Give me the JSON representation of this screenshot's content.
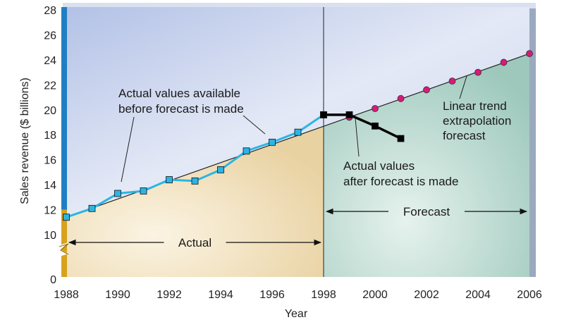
{
  "chart_data": {
    "type": "line",
    "title": "",
    "xlabel": "Year",
    "ylabel": "Sales revenue ($ billions)",
    "x_ticks": [
      1988,
      1990,
      1992,
      1994,
      1996,
      1998,
      2000,
      2002,
      2004,
      2006
    ],
    "y_ticks": [
      0,
      10,
      12,
      14,
      16,
      18,
      20,
      22,
      24,
      26,
      28
    ],
    "xlim": [
      1988,
      2006
    ],
    "ylim": [
      0,
      28
    ],
    "y_axis_break": true,
    "series": [
      {
        "role": "actual-before",
        "marker": "square",
        "color": "#2bb5e4",
        "x": [
          1988,
          1989,
          1990,
          1991,
          1992,
          1993,
          1994,
          1995,
          1996,
          1997,
          1998
        ],
        "y": [
          11.4,
          12.1,
          13.3,
          13.5,
          14.4,
          14.3,
          15.2,
          16.7,
          17.4,
          18.2,
          19.6
        ]
      },
      {
        "role": "actual-after",
        "marker": "square",
        "color": "#000000",
        "x": [
          1998,
          1999,
          2000,
          2001
        ],
        "y": [
          19.6,
          19.6,
          18.7,
          17.7
        ]
      },
      {
        "role": "linear-trend",
        "marker": "circle",
        "color": "#d8197a",
        "x": [
          1988,
          1999,
          2000,
          2001,
          2002,
          2003,
          2004,
          2005,
          2006
        ],
        "y": [
          11.4,
          19.4,
          20.1,
          20.9,
          21.6,
          22.3,
          23.0,
          23.8,
          24.5
        ]
      }
    ],
    "trend_line": {
      "x": [
        1988,
        2006
      ],
      "y": [
        11.4,
        24.5
      ]
    },
    "forecast_start": 1998,
    "regions": [
      {
        "label": "Actual",
        "x_from": 1988,
        "x_to": 1998
      },
      {
        "label": "Forecast",
        "x_from": 1998,
        "x_to": 2006
      }
    ],
    "annotations": [
      {
        "lines": [
          "Actual values available",
          "before forecast is made"
        ]
      },
      {
        "lines": [
          "Actual values",
          "after forecast is made"
        ]
      },
      {
        "lines": [
          "Linear trend",
          "extrapolation",
          "forecast"
        ]
      }
    ]
  },
  "colors": {
    "upper_background": "#b8c6e6",
    "actual_lower_background": "#eedcb6",
    "forecast_lower_background": "#a9d0c4",
    "y_axis_blue": "#1f7fc4",
    "y_axis_gold": "#d8a21c"
  }
}
